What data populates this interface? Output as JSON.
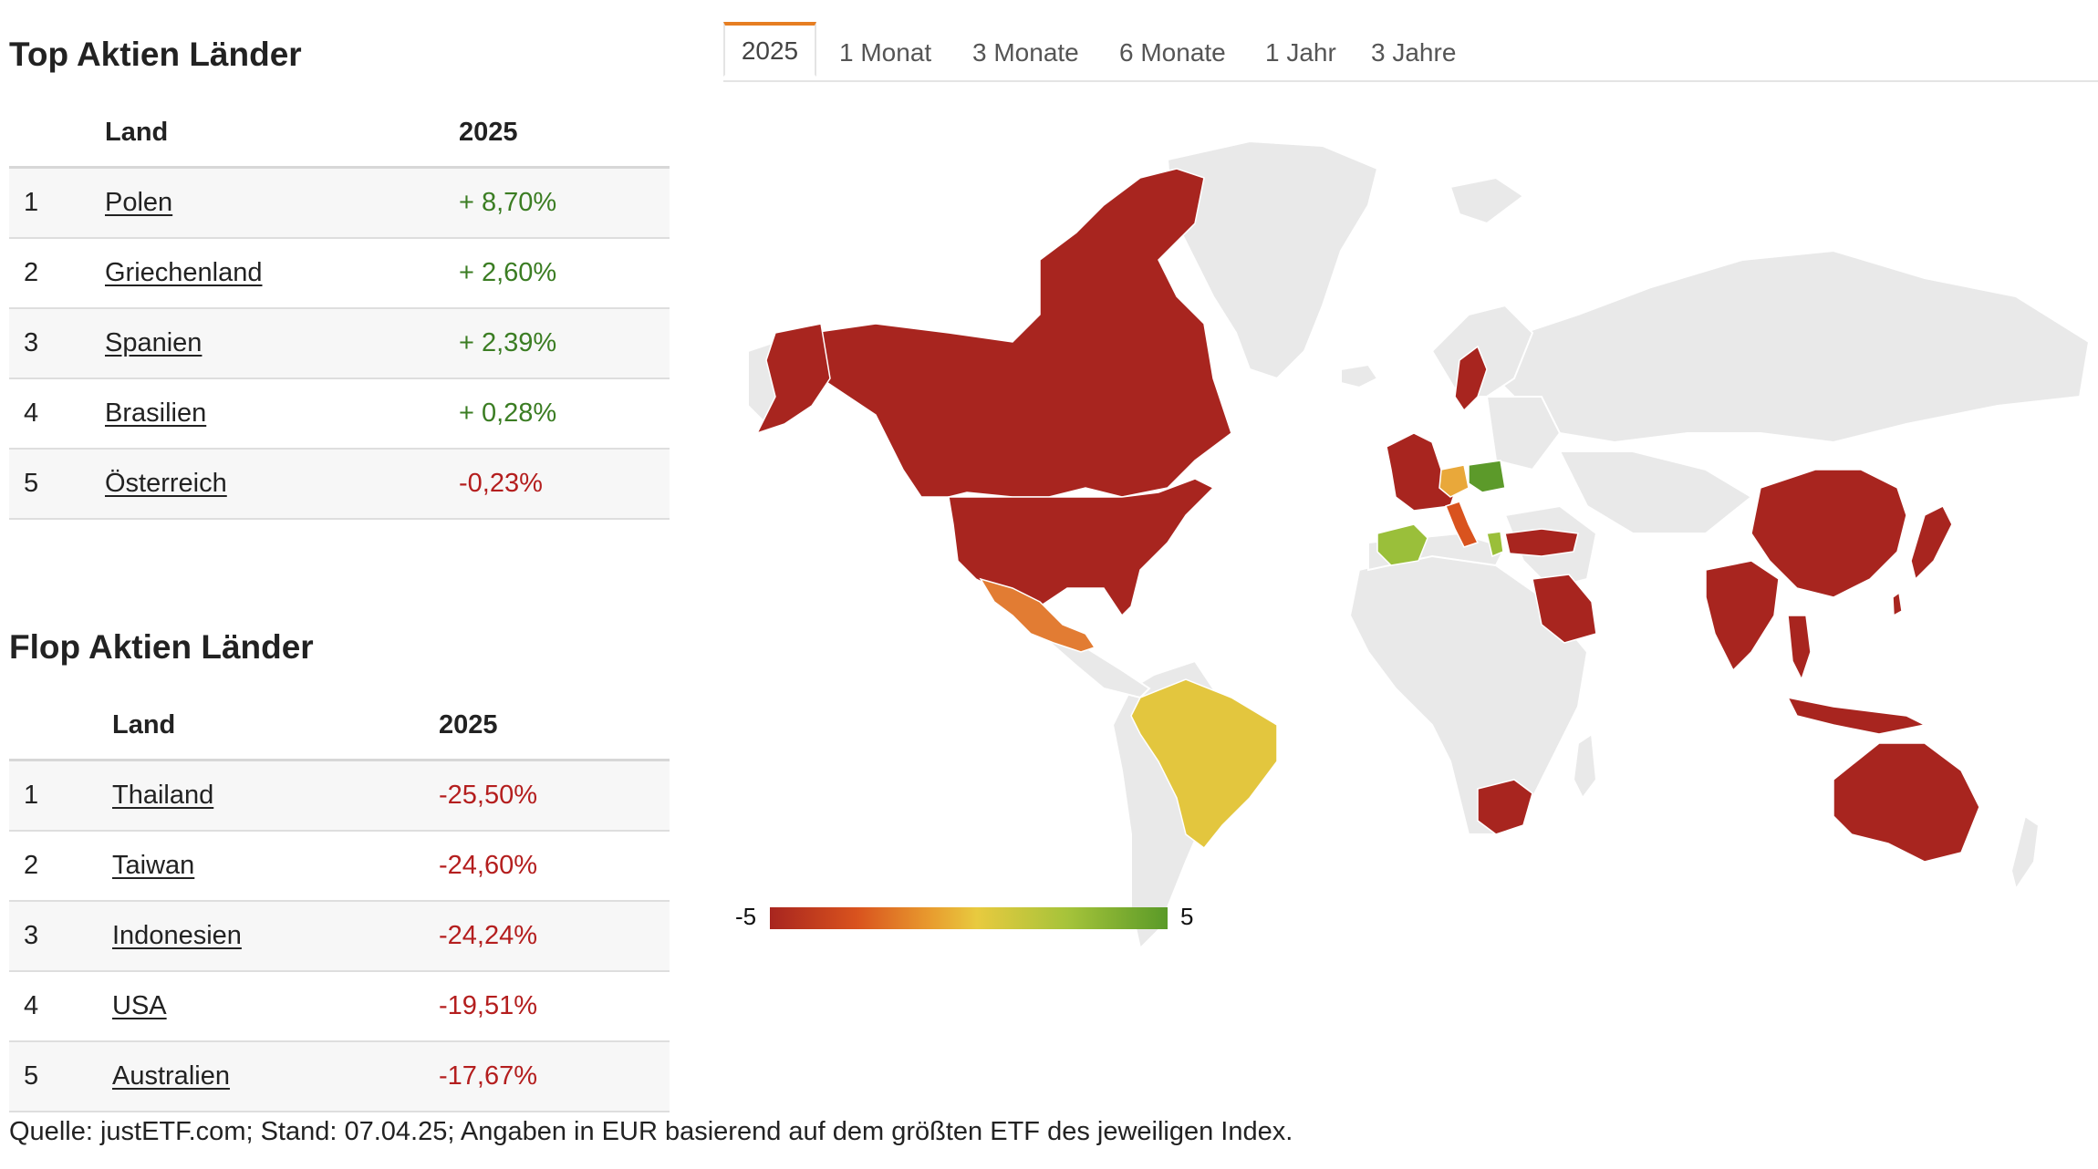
{
  "top": {
    "title": "Top Aktien Länder",
    "headers": {
      "land": "Land",
      "period": "2025"
    },
    "rows": [
      {
        "rank": "1",
        "country": "Polen",
        "value": "+ 8,70%"
      },
      {
        "rank": "2",
        "country": "Griechenland",
        "value": "+ 2,60%"
      },
      {
        "rank": "3",
        "country": "Spanien",
        "value": "+ 2,39%"
      },
      {
        "rank": "4",
        "country": "Brasilien",
        "value": "+ 0,28%"
      },
      {
        "rank": "5",
        "country": "Österreich",
        "value": "-0,23%"
      }
    ]
  },
  "flop": {
    "title": "Flop Aktien Länder",
    "headers": {
      "land": "Land",
      "period": "2025"
    },
    "rows": [
      {
        "rank": "1",
        "country": "Thailand",
        "value": "-25,50%"
      },
      {
        "rank": "2",
        "country": "Taiwan",
        "value": "-24,60%"
      },
      {
        "rank": "3",
        "country": "Indonesien",
        "value": "-24,24%"
      },
      {
        "rank": "4",
        "country": "USA",
        "value": "-19,51%"
      },
      {
        "rank": "5",
        "country": "Australien",
        "value": "-17,67%"
      }
    ]
  },
  "tabs": [
    "2025",
    "1 Monat",
    "3 Monate",
    "6 Monate",
    "1 Jahr",
    "3 Jahre"
  ],
  "legend": {
    "min": "-5",
    "max": "5"
  },
  "colors": {
    "positive": "#3b7d23",
    "negative": "#b41e1e",
    "accent": "#e67e22",
    "map_dark_red": "#a8251f",
    "map_land": "#e9e9e9"
  },
  "footer": "Quelle: justETF.com; Stand: 07.04.25; Angaben in EUR basierend auf dem größten ETF des jeweiligen Index."
}
